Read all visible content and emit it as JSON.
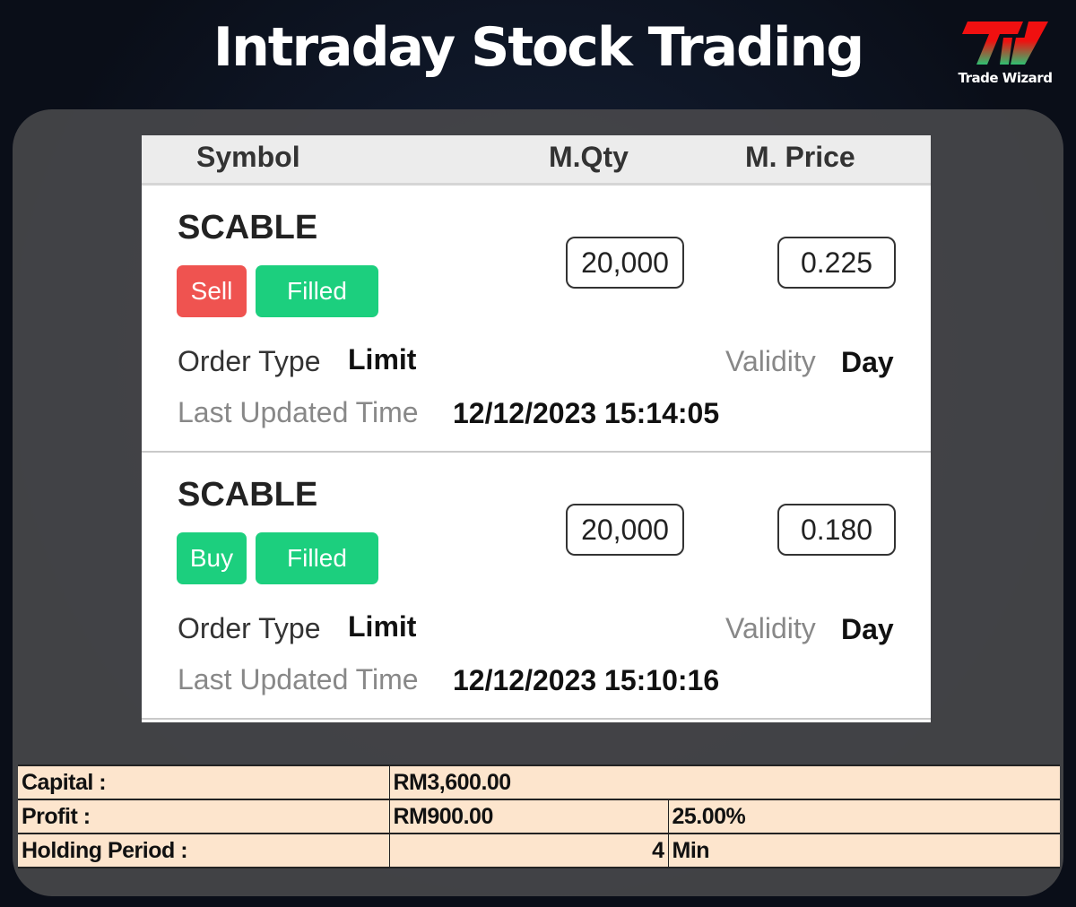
{
  "title": "Intraday Stock Trading",
  "logo": {
    "text": "Trade Wizard",
    "mark": "TW"
  },
  "colors": {
    "sell": "#ef5350",
    "buy": "#1ccf7e",
    "filled": "#1ccf7e",
    "summary_bg": "#fde5cd"
  },
  "headers": {
    "symbol": "Symbol",
    "qty": "M.Qty",
    "price": "M. Price"
  },
  "orders": [
    {
      "symbol": "SCABLE",
      "side": "Sell",
      "status": "Filled",
      "qty": "20,000",
      "price": "0.225",
      "order_type_label": "Order Type",
      "order_type": "Limit",
      "validity_label": "Validity",
      "validity": "Day",
      "time_label": "Last Updated Time",
      "time": "12/12/2023 15:14:05"
    },
    {
      "symbol": "SCABLE",
      "side": "Buy",
      "status": "Filled",
      "qty": "20,000",
      "price": "0.180",
      "order_type_label": "Order Type",
      "order_type": "Limit",
      "validity_label": "Validity",
      "validity": "Day",
      "time_label": "Last Updated Time",
      "time": "12/12/2023 15:10:16"
    }
  ],
  "summary": {
    "capital_label": "Capital :",
    "capital": "RM3,600.00",
    "profit_label": "Profit :",
    "profit": "RM900.00",
    "profit_pct": "25.00%",
    "holding_label": "Holding Period :",
    "holding_value": "4",
    "holding_unit": "Min"
  }
}
